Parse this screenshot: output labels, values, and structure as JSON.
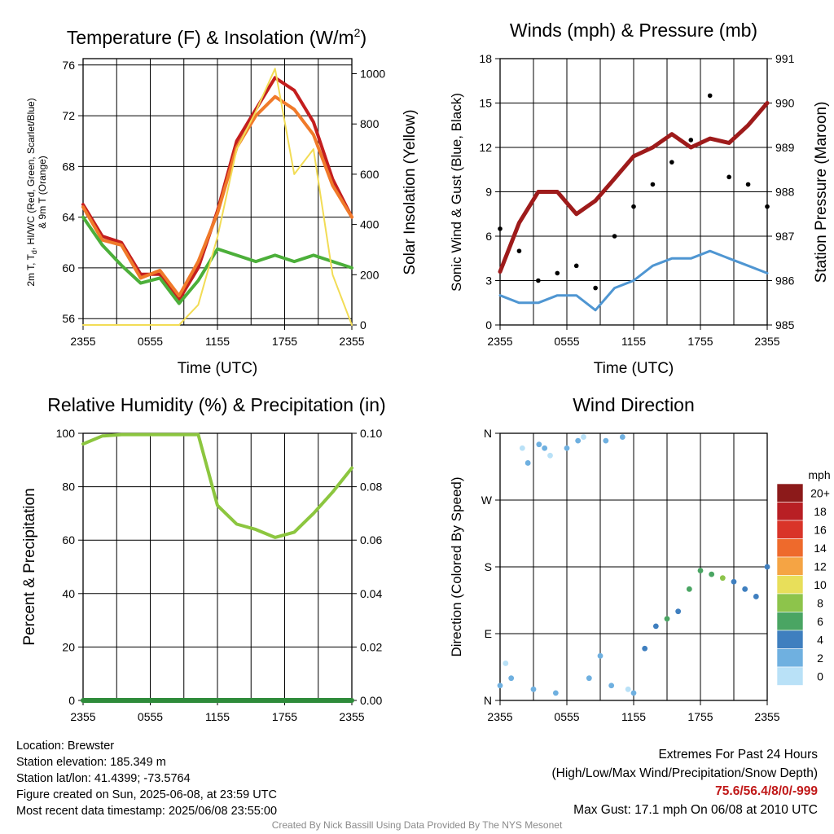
{
  "panels": {
    "temperature": {
      "title_main": "Temperature (F) & Insolation (W/m",
      "title_sup": "2",
      "title_end": ")",
      "ylabel_l1": "2m T, T",
      "ylabel_sub": "d",
      "ylabel_l1_end": ", HI/WC (Red, Green, Scarlet/Blue)",
      "ylabel_l2": "& 9m T (Orange)",
      "ylabel_right": "Solar Insolation (Yellow)",
      "xlabel": "Time (UTC)",
      "x_ticks": [
        "2355",
        "0555",
        "1155",
        "1755",
        "2355"
      ],
      "y_ticks_left": [
        "56",
        "60",
        "64",
        "68",
        "72",
        "76"
      ],
      "y_ticks_right": [
        "0",
        "200",
        "400",
        "600",
        "800",
        "1000"
      ]
    },
    "winds": {
      "title": "Winds (mph) & Pressure (mb)",
      "ylabel_left": "Sonic Wind & Gust (Blue, Black)",
      "ylabel_right": "Station Pressure (Maroon)",
      "xlabel": "Time (UTC)",
      "x_ticks": [
        "2355",
        "0555",
        "1155",
        "1755",
        "2355"
      ],
      "y_ticks_left": [
        "0",
        "3",
        "6",
        "9",
        "12",
        "15",
        "18"
      ],
      "y_ticks_right": [
        "985",
        "986",
        "987",
        "988",
        "989",
        "990",
        "991"
      ]
    },
    "humidity": {
      "title": "Relative Humidity (%) & Precipitation (in)",
      "ylabel_left": "Percent & Precipitation",
      "x_ticks": [
        "2355",
        "0555",
        "1155",
        "1755",
        "2355"
      ],
      "y_ticks_left": [
        "0",
        "20",
        "40",
        "60",
        "80",
        "100"
      ],
      "y_ticks_right": [
        "0.00",
        "0.02",
        "0.04",
        "0.06",
        "0.08",
        "0.10"
      ]
    },
    "direction": {
      "title": "Wind Direction",
      "ylabel_left": "Direction (Colored By Speed)",
      "x_ticks": [
        "2355",
        "0555",
        "1155",
        "1755",
        "2355"
      ],
      "y_ticks_left": [
        "N",
        "E",
        "S",
        "W",
        "N"
      ],
      "colorbar": {
        "unit": "mph",
        "labels": [
          "20+",
          "18",
          "16",
          "14",
          "12",
          "10",
          "8",
          "6",
          "4",
          "2",
          "0"
        ],
        "colors": [
          "#8c1a1a",
          "#b81f24",
          "#d93429",
          "#ee6a2c",
          "#f5a444",
          "#e8df5a",
          "#8dc44b",
          "#4aa563",
          "#3f7fbf",
          "#6fb0e0",
          "#b9e1f7"
        ]
      }
    }
  },
  "chart_data": [
    {
      "type": "line",
      "title": "Temperature (F) & Insolation (W/m2)",
      "xlabel": "Time (UTC)",
      "ylabel": "2m T, Td, HI/WC (Red, Green, Scarlet/Blue) & 9m T (Orange)",
      "ylabel_right": "Solar Insolation (Yellow)",
      "x": [
        "2355",
        "0155",
        "0355",
        "0555",
        "0755",
        "0955",
        "1155",
        "1355",
        "1555",
        "1655",
        "1755",
        "1855",
        "1955",
        "2155",
        "2355"
      ],
      "ylim": [
        55.5,
        76.5
      ],
      "ylim_right": [
        0,
        1060
      ],
      "series": [
        {
          "color": "#c41e1e",
          "axis": "left",
          "values": [
            65.0,
            62.5,
            62.0,
            59.5,
            59.5,
            57.5,
            60.0,
            64.5,
            70.0,
            72.5,
            75.0,
            74.0,
            71.5,
            67.0,
            64.0
          ]
        },
        {
          "color": "#f07a2a",
          "axis": "left",
          "values": [
            64.8,
            62.2,
            61.8,
            59.2,
            59.8,
            57.8,
            60.5,
            64.3,
            69.5,
            72.0,
            73.5,
            72.5,
            70.5,
            66.5,
            64.0
          ]
        },
        {
          "color": "#4caf3a",
          "axis": "left",
          "values": [
            64.0,
            61.8,
            60.2,
            58.8,
            59.2,
            57.2,
            59.0,
            61.5,
            61.0,
            60.5,
            61.0,
            60.5,
            61.0,
            60.5,
            60.0
          ]
        },
        {
          "color": "#f2dc55",
          "axis": "right",
          "values": [
            0,
            0,
            0,
            0,
            0,
            0,
            80,
            350,
            700,
            850,
            1020,
            600,
            700,
            200,
            0
          ]
        }
      ]
    },
    {
      "type": "line",
      "title": "Winds (mph) & Pressure (mb)",
      "xlabel": "Time (UTC)",
      "ylabel": "Sonic Wind & Gust (Blue, Black)",
      "ylabel_right": "Station Pressure (Maroon)",
      "x": [
        "2355",
        "0155",
        "0355",
        "0555",
        "0755",
        "0955",
        "1155",
        "1355",
        "1555",
        "1655",
        "1755",
        "1855",
        "1955",
        "2155",
        "2355"
      ],
      "ylim": [
        0,
        18
      ],
      "ylim_right": [
        985,
        991
      ],
      "series": [
        {
          "color": "#4f96d2",
          "axis": "left",
          "values": [
            2.0,
            1.5,
            1.5,
            2.0,
            2.0,
            1.0,
            2.5,
            3.0,
            4.0,
            4.5,
            4.5,
            5.0,
            4.5,
            4.0,
            3.5
          ]
        },
        {
          "color": "#000000",
          "axis": "left",
          "type": "scatter",
          "values": [
            6.5,
            5.0,
            3.0,
            3.5,
            4.0,
            2.5,
            6.0,
            8.0,
            9.5,
            11.0,
            12.5,
            15.5,
            10.0,
            9.5,
            8.0
          ]
        },
        {
          "color": "#9e1b1b",
          "axis": "right",
          "values": [
            986.2,
            987.3,
            988.0,
            988.0,
            987.5,
            987.8,
            988.3,
            988.8,
            989.0,
            989.3,
            989.0,
            989.2,
            989.1,
            989.5,
            990.0
          ]
        }
      ]
    },
    {
      "type": "line",
      "title": "Relative Humidity (%) & Precipitation (in)",
      "ylabel": "Percent & Precipitation",
      "x": [
        "2355",
        "0155",
        "0355",
        "0555",
        "0755",
        "0955",
        "1155",
        "1355",
        "1555",
        "1655",
        "1755",
        "1855",
        "1955",
        "2155",
        "2355"
      ],
      "ylim": [
        0,
        100
      ],
      "ylim_right": [
        0,
        0.1
      ],
      "series": [
        {
          "color": "#8cc63f",
          "axis": "left",
          "values": [
            96,
            99,
            99.5,
            99.5,
            99.5,
            99.5,
            99.5,
            73,
            66,
            64,
            61,
            63,
            70,
            78,
            87
          ]
        },
        {
          "color": "#2e8b3a",
          "axis": "right",
          "values": [
            0,
            0,
            0,
            0,
            0,
            0,
            0,
            0,
            0,
            0,
            0,
            0,
            0,
            0,
            0
          ]
        }
      ]
    },
    {
      "type": "scatter",
      "title": "Wind Direction",
      "ylabel": "Direction (Colored By Speed)",
      "y_categories": [
        "N",
        "E",
        "S",
        "W",
        "N"
      ],
      "ylim": [
        0,
        360
      ],
      "x_hours": [
        0,
        0.5,
        1,
        2,
        2.5,
        3,
        3.5,
        4,
        4.5,
        5,
        6,
        7,
        7.5,
        8,
        9,
        9.5,
        10,
        11,
        11.5,
        12,
        13,
        14,
        15,
        16,
        17,
        18,
        19,
        20,
        21,
        22,
        23,
        24
      ],
      "direction_deg": [
        20,
        50,
        30,
        340,
        320,
        15,
        345,
        340,
        330,
        10,
        340,
        350,
        355,
        30,
        60,
        350,
        20,
        355,
        15,
        10,
        70,
        100,
        110,
        120,
        150,
        175,
        170,
        165,
        160,
        150,
        140,
        180
      ],
      "speed_mph": [
        2,
        1,
        2,
        1,
        3,
        2,
        3,
        2,
        1,
        2,
        3,
        2,
        1,
        3,
        2,
        3,
        2,
        2,
        1,
        3,
        4,
        5,
        6,
        5,
        7,
        6,
        7,
        8,
        5,
        4,
        4,
        4
      ]
    }
  ],
  "footer": {
    "location": "Location: Brewster",
    "elevation": "Station elevation: 185.349 m",
    "latlon": "Station lat/lon: 41.4399; -73.5764",
    "created": "Figure created on Sun, 2025-06-08, at 23:59 UTC",
    "recent": "Most recent data timestamp: 2025/06/08 23:55:00",
    "extremes_title": "Extremes For Past 24 Hours",
    "extremes_desc": "(High/Low/Max Wind/Precipitation/Snow Depth)",
    "extremes_values": "75.6/56.4/8/0/-999",
    "max_gust": "Max Gust: 17.1 mph On 06/08 at 2010 UTC",
    "credit": "Created By Nick Bassill Using Data Provided By The NYS Mesonet"
  }
}
